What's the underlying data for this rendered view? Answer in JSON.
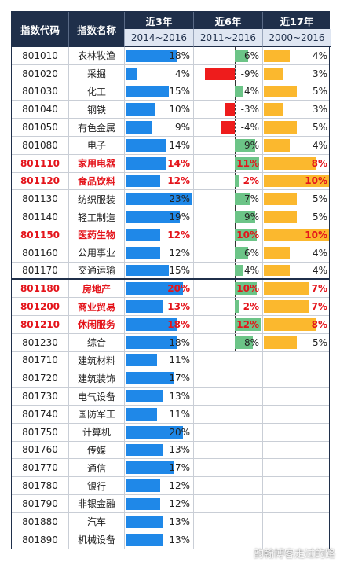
{
  "header": {
    "code": "指数代码",
    "name": "指数名称",
    "col3": "近3年",
    "col6": "近6年",
    "col17": "近17年",
    "range3": "2014~2016",
    "range6": "2011~2016",
    "range17": "2000~2016"
  },
  "rows": [
    {
      "code": "801010",
      "name": "农林牧渔",
      "y3": "18%",
      "y6": "6%",
      "y17": "4%",
      "v3": 18,
      "v6": 6,
      "v17": 4,
      "hl": false
    },
    {
      "code": "801020",
      "name": "采掘",
      "y3": "4%",
      "y6": "-9%",
      "y17": "3%",
      "v3": 4,
      "v6": -9,
      "v17": 3,
      "hl": false
    },
    {
      "code": "801030",
      "name": "化工",
      "y3": "15%",
      "y6": "4%",
      "y17": "5%",
      "v3": 15,
      "v6": 4,
      "v17": 5,
      "hl": false
    },
    {
      "code": "801040",
      "name": "钢铁",
      "y3": "10%",
      "y6": "-3%",
      "y17": "3%",
      "v3": 10,
      "v6": -3,
      "v17": 3,
      "hl": false
    },
    {
      "code": "801050",
      "name": "有色金属",
      "y3": "9%",
      "y6": "-4%",
      "y17": "5%",
      "v3": 9,
      "v6": -4,
      "v17": 5,
      "hl": false
    },
    {
      "code": "801080",
      "name": "电子",
      "y3": "14%",
      "y6": "9%",
      "y17": "4%",
      "v3": 14,
      "v6": 9,
      "v17": 4,
      "hl": false
    },
    {
      "code": "801110",
      "name": "家用电器",
      "y3": "14%",
      "y6": "11%",
      "y17": "8%",
      "v3": 14,
      "v6": 11,
      "v17": 8,
      "hl": true
    },
    {
      "code": "801120",
      "name": "食品饮料",
      "y3": "12%",
      "y6": "2%",
      "y17": "10%",
      "v3": 12,
      "v6": 2,
      "v17": 10,
      "hl": true
    },
    {
      "code": "801130",
      "name": "纺织服装",
      "y3": "23%",
      "y6": "7%",
      "y17": "5%",
      "v3": 23,
      "v6": 7,
      "v17": 5,
      "hl": false
    },
    {
      "code": "801140",
      "name": "轻工制造",
      "y3": "19%",
      "y6": "9%",
      "y17": "5%",
      "v3": 19,
      "v6": 9,
      "v17": 5,
      "hl": false
    },
    {
      "code": "801150",
      "name": "医药生物",
      "y3": "12%",
      "y6": "10%",
      "y17": "10%",
      "v3": 12,
      "v6": 10,
      "v17": 10,
      "hl": true
    },
    {
      "code": "801160",
      "name": "公用事业",
      "y3": "12%",
      "y6": "6%",
      "y17": "4%",
      "v3": 12,
      "v6": 6,
      "v17": 4,
      "hl": false
    },
    {
      "code": "801170",
      "name": "交通运输",
      "y3": "15%",
      "y6": "4%",
      "y17": "4%",
      "v3": 15,
      "v6": 4,
      "v17": 4,
      "hl": false
    },
    {
      "code": "801180",
      "name": "房地产",
      "y3": "20%",
      "y6": "10%",
      "y17": "7%",
      "v3": 20,
      "v6": 10,
      "v17": 7,
      "hl": true
    },
    {
      "code": "801200",
      "name": "商业贸易",
      "y3": "13%",
      "y6": "2%",
      "y17": "7%",
      "v3": 13,
      "v6": 2,
      "v17": 7,
      "hl": true
    },
    {
      "code": "801210",
      "name": "休闲服务",
      "y3": "18%",
      "y6": "12%",
      "y17": "8%",
      "v3": 18,
      "v6": 12,
      "v17": 8,
      "hl": true
    },
    {
      "code": "801230",
      "name": "综合",
      "y3": "18%",
      "y6": "8%",
      "y17": "5%",
      "v3": 18,
      "v6": 8,
      "v17": 5,
      "hl": false
    },
    {
      "code": "801710",
      "name": "建筑材料",
      "y3": "11%",
      "y6": "",
      "y17": "",
      "v3": 11,
      "v6": null,
      "v17": null,
      "hl": false
    },
    {
      "code": "801720",
      "name": "建筑装饰",
      "y3": "17%",
      "y6": "",
      "y17": "",
      "v3": 17,
      "v6": null,
      "v17": null,
      "hl": false
    },
    {
      "code": "801730",
      "name": "电气设备",
      "y3": "13%",
      "y6": "",
      "y17": "",
      "v3": 13,
      "v6": null,
      "v17": null,
      "hl": false
    },
    {
      "code": "801740",
      "name": "国防军工",
      "y3": "11%",
      "y6": "",
      "y17": "",
      "v3": 11,
      "v6": null,
      "v17": null,
      "hl": false
    },
    {
      "code": "801750",
      "name": "计算机",
      "y3": "20%",
      "y6": "",
      "y17": "",
      "v3": 20,
      "v6": null,
      "v17": null,
      "hl": false
    },
    {
      "code": "801760",
      "name": "传媒",
      "y3": "13%",
      "y6": "",
      "y17": "",
      "v3": 13,
      "v6": null,
      "v17": null,
      "hl": false
    },
    {
      "code": "801770",
      "name": "通信",
      "y3": "17%",
      "y6": "",
      "y17": "",
      "v3": 17,
      "v6": null,
      "v17": null,
      "hl": false
    },
    {
      "code": "801780",
      "name": "银行",
      "y3": "12%",
      "y6": "",
      "y17": "",
      "v3": 12,
      "v6": null,
      "v17": null,
      "hl": false
    },
    {
      "code": "801790",
      "name": "非银金融",
      "y3": "12%",
      "y6": "",
      "y17": "",
      "v3": 12,
      "v6": null,
      "v17": null,
      "hl": false
    },
    {
      "code": "801880",
      "name": "汽车",
      "y3": "13%",
      "y6": "",
      "y17": "",
      "v3": 13,
      "v6": null,
      "v17": null,
      "hl": false
    },
    {
      "code": "801890",
      "name": "机械设备",
      "y3": "13%",
      "y6": "",
      "y17": "",
      "v3": 13,
      "v6": null,
      "v17": null,
      "hl": false
    }
  ],
  "colors": {
    "header_bg": "#1f2f4a",
    "bar3": "#1f88e8",
    "bar6_pos": "#6cc487",
    "bar6_neg": "#ee1c1c",
    "bar17": "#fbb82e",
    "highlight_text": "#e4141b"
  },
  "watermark": "韵翰博客走过的路"
}
